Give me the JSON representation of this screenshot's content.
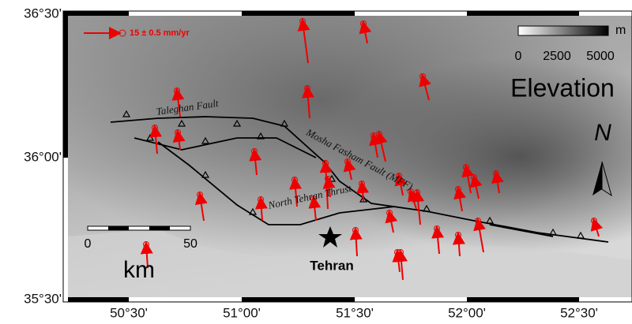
{
  "map": {
    "lat_labels": [
      "36°30'",
      "36°00'",
      "35°30'"
    ],
    "lon_labels": [
      "50°30'",
      "51°00'",
      "51°30'",
      "52°00'",
      "52°30'"
    ],
    "velocity_legend": "15 ± 0.5 mm/yr",
    "elevation": {
      "unit": "m",
      "ticks": [
        "0",
        "2500",
        "5000"
      ],
      "title": "Elevation"
    },
    "north": "N",
    "faults": [
      "Taleghan Fault",
      "Mosha Fasham Fault (MFF)",
      "North Tehran Thrust"
    ],
    "city": "Tehran",
    "scale_bar": {
      "ticks": [
        "0",
        "50"
      ],
      "unit": "km"
    }
  }
}
